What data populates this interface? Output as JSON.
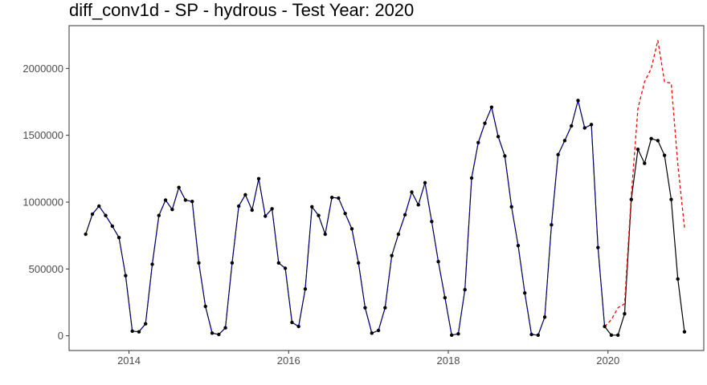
{
  "chart_data": {
    "type": "line",
    "title": "diff_conv1d - SP - hydrous - Test Year: 2020",
    "xlabel": "",
    "ylabel": "",
    "xlim": [
      2013.25,
      2021.2
    ],
    "ylim": [
      -110000,
      2320000
    ],
    "x_ticks": [
      2014,
      2016,
      2018,
      2020
    ],
    "x_tick_labels": [
      "2014",
      "2016",
      "2018",
      "2020"
    ],
    "y_ticks": [
      0,
      500000,
      1000000,
      1500000,
      2000000
    ],
    "y_tick_labels": [
      "0",
      "500000",
      "1000000",
      "1500000",
      "2000000"
    ],
    "grid": false,
    "legend": "none",
    "series": [
      {
        "role": "actual",
        "color": "#000000",
        "style": "solid-with-points",
        "x": [
          2013.458,
          2013.542,
          2013.625,
          2013.708,
          2013.792,
          2013.875,
          2013.958,
          2014.042,
          2014.125,
          2014.208,
          2014.292,
          2014.375,
          2014.458,
          2014.542,
          2014.625,
          2014.708,
          2014.792,
          2014.875,
          2014.958,
          2015.042,
          2015.125,
          2015.208,
          2015.292,
          2015.375,
          2015.458,
          2015.542,
          2015.625,
          2015.708,
          2015.792,
          2015.875,
          2015.958,
          2016.042,
          2016.125,
          2016.208,
          2016.292,
          2016.375,
          2016.458,
          2016.542,
          2016.625,
          2016.708,
          2016.792,
          2016.875,
          2016.958,
          2017.042,
          2017.125,
          2017.208,
          2017.292,
          2017.375,
          2017.458,
          2017.542,
          2017.625,
          2017.708,
          2017.792,
          2017.875,
          2017.958,
          2018.042,
          2018.125,
          2018.208,
          2018.292,
          2018.375,
          2018.458,
          2018.542,
          2018.625,
          2018.708,
          2018.792,
          2018.875,
          2018.958,
          2019.042,
          2019.125,
          2019.208,
          2019.292,
          2019.375,
          2019.458,
          2019.542,
          2019.625,
          2019.708,
          2019.792,
          2019.875,
          2019.958,
          2020.042,
          2020.125,
          2020.208,
          2020.292,
          2020.375,
          2020.458,
          2020.542,
          2020.625,
          2020.708,
          2020.792,
          2020.875,
          2020.958
        ],
        "values": [
          760000,
          910000,
          970000,
          900000,
          820000,
          735000,
          450000,
          35000,
          30000,
          90000,
          535000,
          900000,
          1015000,
          945000,
          1110000,
          1015000,
          1005000,
          545000,
          220000,
          20000,
          10000,
          60000,
          545000,
          970000,
          1055000,
          940000,
          1175000,
          895000,
          950000,
          545000,
          505000,
          100000,
          70000,
          350000,
          965000,
          900000,
          760000,
          1035000,
          1030000,
          915000,
          800000,
          545000,
          210000,
          20000,
          40000,
          210000,
          600000,
          760000,
          905000,
          1075000,
          980000,
          1145000,
          855000,
          555000,
          285000,
          5000,
          15000,
          345000,
          1180000,
          1445000,
          1590000,
          1710000,
          1490000,
          1345000,
          965000,
          675000,
          320000,
          10000,
          5000,
          140000,
          830000,
          1355000,
          1460000,
          1570000,
          1760000,
          1555000,
          1580000,
          660000,
          70000,
          5000,
          5000,
          165000,
          1020000,
          1395000,
          1290000,
          1475000,
          1460000,
          1350000,
          1020000,
          425000,
          30000
        ]
      },
      {
        "role": "fitted",
        "color": "#0000cd",
        "style": "dashed",
        "x": [
          2013.458,
          2013.542,
          2013.625,
          2013.708,
          2013.792,
          2013.875,
          2013.958,
          2014.042,
          2014.125,
          2014.208,
          2014.292,
          2014.375,
          2014.458,
          2014.542,
          2014.625,
          2014.708,
          2014.792,
          2014.875,
          2014.958,
          2015.042,
          2015.125,
          2015.208,
          2015.292,
          2015.375,
          2015.458,
          2015.542,
          2015.625,
          2015.708,
          2015.792,
          2015.875,
          2015.958,
          2016.042,
          2016.125,
          2016.208,
          2016.292,
          2016.375,
          2016.458,
          2016.542,
          2016.625,
          2016.708,
          2016.792,
          2016.875,
          2016.958,
          2017.042,
          2017.125,
          2017.208,
          2017.292,
          2017.375,
          2017.458,
          2017.542,
          2017.625,
          2017.708,
          2017.792,
          2017.875,
          2017.958,
          2018.042,
          2018.125,
          2018.208,
          2018.292,
          2018.375,
          2018.458,
          2018.542,
          2018.625,
          2018.708,
          2018.792,
          2018.875,
          2018.958,
          2019.042,
          2019.125,
          2019.208,
          2019.292,
          2019.375,
          2019.458,
          2019.542,
          2019.625,
          2019.708,
          2019.792,
          2019.875,
          2019.958
        ],
        "values": [
          760000,
          910000,
          970000,
          900000,
          820000,
          735000,
          450000,
          35000,
          30000,
          90000,
          535000,
          900000,
          1015000,
          945000,
          1110000,
          1015000,
          1005000,
          545000,
          220000,
          20000,
          10000,
          60000,
          545000,
          970000,
          1055000,
          940000,
          1175000,
          895000,
          950000,
          545000,
          505000,
          100000,
          70000,
          350000,
          965000,
          900000,
          760000,
          1035000,
          1030000,
          915000,
          800000,
          545000,
          210000,
          20000,
          40000,
          210000,
          600000,
          760000,
          905000,
          1075000,
          980000,
          1145000,
          855000,
          555000,
          285000,
          5000,
          15000,
          345000,
          1180000,
          1445000,
          1590000,
          1710000,
          1490000,
          1345000,
          965000,
          675000,
          320000,
          10000,
          5000,
          140000,
          830000,
          1355000,
          1460000,
          1570000,
          1760000,
          1555000,
          1580000,
          660000,
          70000
        ]
      },
      {
        "role": "forecast",
        "color": "#ff0000",
        "style": "dashed",
        "x": [
          2019.958,
          2020.042,
          2020.125,
          2020.208,
          2020.292,
          2020.375,
          2020.458,
          2020.542,
          2020.625,
          2020.708,
          2020.792,
          2020.875,
          2020.958
        ],
        "values": [
          70000,
          120000,
          210000,
          240000,
          1050000,
          1700000,
          1900000,
          2000000,
          2210000,
          1900000,
          1890000,
          1280000,
          810000
        ]
      }
    ]
  }
}
